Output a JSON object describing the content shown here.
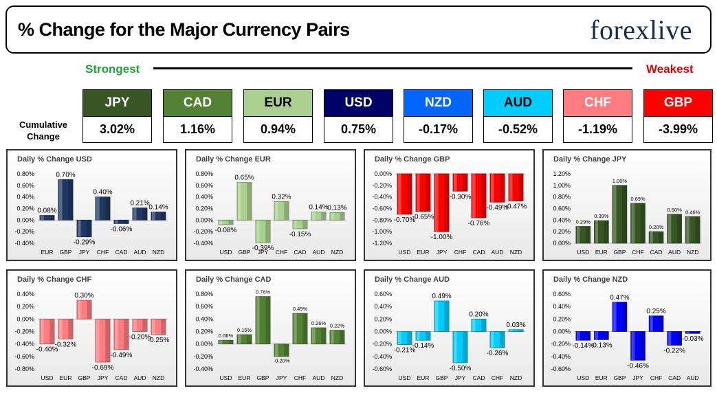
{
  "header": {
    "title": "% Change for the Major Currency Pairs",
    "logo": "forexlive"
  },
  "strength": {
    "strongest_label": "Strongest",
    "weakest_label": "Weakest",
    "cumulative_label_line1": "Cumulative",
    "cumulative_label_line2": "Change",
    "currencies": [
      {
        "name": "JPY",
        "value": "3.02%",
        "color": "#375623",
        "text_color": "#ffffff"
      },
      {
        "name": "CAD",
        "value": "1.16%",
        "color": "#548235",
        "text_color": "#ffffff"
      },
      {
        "name": "EUR",
        "value": "0.94%",
        "color": "#a9d08e",
        "text_color": "#000000"
      },
      {
        "name": "USD",
        "value": "0.75%",
        "color": "#000066",
        "text_color": "#ffffff"
      },
      {
        "name": "NZD",
        "value": "-0.17%",
        "color": "#0066ff",
        "text_color": "#ffffff"
      },
      {
        "name": "AUD",
        "value": "-0.52%",
        "color": "#00ccff",
        "text_color": "#000000"
      },
      {
        "name": "CHF",
        "value": "-1.19%",
        "color": "#ff7c80",
        "text_color": "#ffffff"
      },
      {
        "name": "GBP",
        "value": "-3.99%",
        "color": "#ff0000",
        "text_color": "#ffffff"
      }
    ]
  },
  "chart_data": [
    {
      "type": "bar",
      "title": "Daily % Change USD",
      "color": "#1f3864",
      "categories": [
        "EUR",
        "GBP",
        "JPY",
        "CHF",
        "CAD",
        "AUD",
        "NZD"
      ],
      "values": [
        0.08,
        0.7,
        -0.29,
        0.4,
        -0.06,
        0.21,
        0.14
      ],
      "labels": [
        "0.08%",
        "0.70%",
        "-0.29%",
        "0.40%",
        "-0.06%",
        "0.21%",
        "0.14%"
      ],
      "ylim": [
        -0.4,
        0.8
      ],
      "yticks": [
        "0.80%",
        "0.60%",
        "0.40%",
        "0.20%",
        "0.00%",
        "-0.20%",
        "-0.40%"
      ]
    },
    {
      "type": "bar",
      "title": "Daily % Change EUR",
      "color": "#a9d08e",
      "categories": [
        "USD",
        "GBP",
        "JPY",
        "CHF",
        "CAD",
        "AUD",
        "NZD"
      ],
      "values": [
        -0.08,
        0.65,
        -0.39,
        0.32,
        -0.15,
        0.14,
        0.13
      ],
      "labels": [
        "-0.08%",
        "0.65%",
        "-0.39%",
        "0.32%",
        "-0.15%",
        "0.14%",
        "0.13%"
      ],
      "ylim": [
        -0.4,
        0.8
      ],
      "yticks": [
        "0.80%",
        "0.60%",
        "0.40%",
        "0.20%",
        "0.00%",
        "-0.20%",
        "-0.40%"
      ]
    },
    {
      "type": "bar",
      "title": "Daily % Change GBP",
      "color": "#ff0000",
      "categories": [
        "USD",
        "EUR",
        "JPY",
        "CHF",
        "CAD",
        "AUD",
        "NZD"
      ],
      "values": [
        -0.7,
        -0.65,
        -1.0,
        -0.3,
        -0.76,
        -0.49,
        -0.47
      ],
      "labels": [
        "-0.70%",
        "-0.65%",
        "-1.00%",
        "-0.30%",
        "-0.76%",
        "-0.49%",
        "-0.47%"
      ],
      "ylim": [
        -1.2,
        0.0
      ],
      "yticks": [
        "0.00%",
        "-0.20%",
        "-0.40%",
        "-0.60%",
        "-0.80%",
        "-1.00%",
        "-1.20%"
      ]
    },
    {
      "type": "bar",
      "title": "Daily % Change JPY",
      "color": "#375623",
      "categories": [
        "USD",
        "EUR",
        "GBP",
        "CHF",
        "CAD",
        "AUD",
        "NZD"
      ],
      "values": [
        0.29,
        0.39,
        1.0,
        0.69,
        0.2,
        0.5,
        0.46
      ],
      "labels": [
        "0.29%",
        "0.39%",
        "1.00%",
        "0.69%",
        "0.20%",
        "0.50%",
        "0.46%"
      ],
      "ylim": [
        0.0,
        1.2
      ],
      "yticks": [
        "1.20%",
        "1.00%",
        "0.80%",
        "0.60%",
        "0.40%",
        "0.20%",
        "0.00%"
      ]
    },
    {
      "type": "bar",
      "title": "Daily % Change CHF",
      "color": "#ff7c80",
      "categories": [
        "USD",
        "EUR",
        "GBP",
        "JPY",
        "CAD",
        "AUD",
        "NZD"
      ],
      "values": [
        -0.4,
        -0.32,
        0.3,
        -0.69,
        -0.49,
        -0.2,
        -0.25
      ],
      "labels": [
        "-0.40%",
        "-0.32%",
        "0.30%",
        "-0.69%",
        "-0.49%",
        "-0.20%",
        "-0.25%"
      ],
      "ylim": [
        -0.8,
        0.4
      ],
      "yticks": [
        "0.40%",
        "0.20%",
        "0.00%",
        "-0.20%",
        "-0.40%",
        "-0.60%",
        "-0.80%"
      ]
    },
    {
      "type": "bar",
      "title": "Daily % Change CAD",
      "color": "#548235",
      "categories": [
        "USD",
        "EUR",
        "GBP",
        "JPY",
        "CHF",
        "AUD",
        "NZD"
      ],
      "values": [
        0.06,
        0.15,
        0.76,
        -0.2,
        0.49,
        0.26,
        0.22
      ],
      "labels": [
        "0.06%",
        "0.15%",
        "0.76%",
        "-0.20%",
        "0.49%",
        "0.26%",
        "0.22%"
      ],
      "ylim": [
        -0.4,
        0.8
      ],
      "yticks": [
        "0.80%",
        "0.60%",
        "0.40%",
        "0.20%",
        "0.00%",
        "-0.20%",
        "-0.40%"
      ]
    },
    {
      "type": "bar",
      "title": "Daily % Change AUD",
      "color": "#00ccff",
      "categories": [
        "USD",
        "EUR",
        "GBP",
        "JPY",
        "CAD",
        "CHF",
        "NZD"
      ],
      "values": [
        -0.21,
        -0.14,
        0.49,
        -0.5,
        0.2,
        -0.26,
        0.03
      ],
      "labels": [
        "-0.21%",
        "-0.14%",
        "0.49%",
        "-0.50%",
        "0.20%",
        "-0.26%",
        "0.03%"
      ],
      "ylim": [
        -0.6,
        0.6
      ],
      "yticks": [
        "0.60%",
        "0.40%",
        "0.20%",
        "0.00%",
        "-0.20%",
        "-0.40%",
        "-0.60%"
      ]
    },
    {
      "type": "bar",
      "title": "Daily % Change NZD",
      "color": "#0000ff",
      "categories": [
        "USD",
        "EUR",
        "GBP",
        "JPY",
        "CHF",
        "CAD",
        "AUD"
      ],
      "values": [
        -0.14,
        -0.13,
        0.47,
        -0.46,
        0.25,
        -0.22,
        -0.03
      ],
      "labels": [
        "-0.14%",
        "-0.13%",
        "0.47%",
        "-0.46%",
        "0.25%",
        "-0.22%",
        "-0.03%"
      ],
      "ylim": [
        -0.6,
        0.6
      ],
      "yticks": [
        "0.60%",
        "0.40%",
        "0.20%",
        "0.00%",
        "-0.20%",
        "-0.40%",
        "-0.60%"
      ]
    }
  ]
}
